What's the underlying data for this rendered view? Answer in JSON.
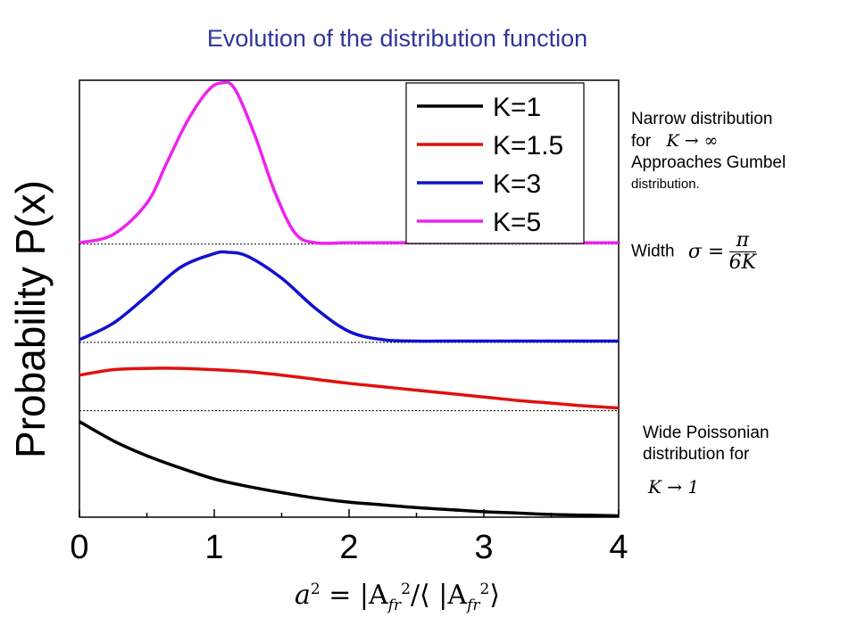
{
  "title": "Evolution of the distribution function",
  "ylabel": "Probability P(x)",
  "xlabel": {
    "a": "a",
    "a_exp": "2",
    "eq": " = |A",
    "sub1": "fr",
    "exp1": "2",
    "mid": "/⟨ |A",
    "sub2": "fr",
    "exp2": "2",
    "end": "⟩"
  },
  "notes": {
    "narrow_line1": "Narrow distribution",
    "narrow_for": "for",
    "narrow_math": "K → ∞",
    "narrow_line3": "Approaches Gumbel",
    "narrow_line4": "distribution.",
    "width_label": "Width",
    "width_lhs": "σ =",
    "width_num": "π",
    "width_den": "6K",
    "wide_line1": "Wide Poissonian",
    "wide_line2": "distribution for",
    "wide_math": "K → 1"
  },
  "chart_data": {
    "type": "line",
    "title": "Evolution of the distribution function",
    "ylabel": "Probability P(x)",
    "xlabel": "a² = |A_fr|²/⟨|A_fr|²⟩",
    "xlim": [
      0,
      4
    ],
    "ylim": [
      0,
      3.2
    ],
    "xticks": [
      "0",
      "1",
      "2",
      "3",
      "4"
    ],
    "x_minor_step": 0.5,
    "y_ticks_visible": false,
    "grid": false,
    "legend_position": "top-right",
    "baselines": [
      0.78,
      1.28,
      2.0
    ],
    "series": [
      {
        "name": "K=1",
        "color": "#000000",
        "x": [
          0,
          0.25,
          0.5,
          0.75,
          1,
          1.25,
          1.5,
          1.75,
          2,
          2.25,
          2.5,
          2.75,
          3,
          3.25,
          3.5,
          3.75,
          4
        ],
        "y": [
          0.7,
          0.56,
          0.45,
          0.36,
          0.28,
          0.225,
          0.18,
          0.14,
          0.11,
          0.09,
          0.07,
          0.055,
          0.04,
          0.03,
          0.02,
          0.015,
          0.01
        ]
      },
      {
        "name": "K=1.5",
        "color": "#e01010",
        "x": [
          0,
          0.25,
          0.5,
          0.75,
          1,
          1.25,
          1.5,
          1.75,
          2,
          2.25,
          2.5,
          2.75,
          3,
          3.25,
          3.5,
          3.75,
          4
        ],
        "y": [
          1.04,
          1.08,
          1.09,
          1.09,
          1.08,
          1.065,
          1.04,
          1.01,
          0.98,
          0.955,
          0.93,
          0.905,
          0.88,
          0.855,
          0.835,
          0.815,
          0.8
        ]
      },
      {
        "name": "K=3",
        "color": "#1010d0",
        "x": [
          0,
          0.25,
          0.5,
          0.75,
          1,
          1.1,
          1.25,
          1.5,
          1.75,
          2,
          2.25,
          2.5,
          2.75,
          3,
          3.25,
          3.5,
          3.75,
          4
        ],
        "y": [
          1.3,
          1.42,
          1.62,
          1.83,
          1.93,
          1.94,
          1.91,
          1.75,
          1.53,
          1.36,
          1.3,
          1.29,
          1.29,
          1.29,
          1.29,
          1.29,
          1.29,
          1.29
        ]
      },
      {
        "name": "K=5",
        "color": "#ee22ee",
        "x": [
          0,
          0.25,
          0.5,
          0.65,
          0.8,
          0.95,
          1.05,
          1.15,
          1.3,
          1.45,
          1.6,
          1.75,
          2,
          2.5,
          3,
          3.5,
          4
        ],
        "y": [
          2.01,
          2.07,
          2.3,
          2.6,
          2.9,
          3.12,
          3.18,
          3.14,
          2.8,
          2.38,
          2.08,
          2.01,
          2.01,
          2.01,
          2.01,
          2.01,
          2.01
        ]
      }
    ]
  }
}
